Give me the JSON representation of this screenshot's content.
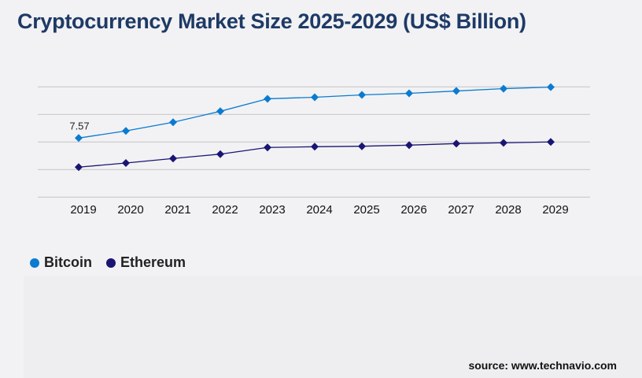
{
  "title": "Cryptocurrency Market Size 2025-2029 (US$ Billion)",
  "source": "source: www.technavio.com",
  "chart_data": {
    "type": "line",
    "title": "Cryptocurrency Market Size 2025-2029 (US$ Billion)",
    "xlabel": "",
    "ylabel": "",
    "categories": [
      "2019",
      "2020",
      "2021",
      "2022",
      "2023",
      "2024",
      "2025",
      "2026",
      "2027",
      "2028",
      "2029"
    ],
    "ylim": [
      0,
      14.13
    ],
    "grid": true,
    "y_tick_labels_shown": false,
    "legend_position": "bottom-left",
    "series": [
      {
        "name": "Bitcoin",
        "color": "#0a7bd0",
        "values": [
          7.57,
          8.48,
          9.59,
          11.0,
          12.6,
          12.8,
          13.1,
          13.3,
          13.6,
          13.9,
          14.1
        ]
      },
      {
        "name": "Ethereum",
        "color": "#1a1573",
        "values": [
          3.84,
          4.37,
          4.95,
          5.51,
          6.36,
          6.46,
          6.52,
          6.66,
          6.86,
          6.96,
          7.07
        ]
      }
    ],
    "data_labels": [
      {
        "series": "Bitcoin",
        "category": "2019",
        "text": "7.57"
      }
    ]
  }
}
